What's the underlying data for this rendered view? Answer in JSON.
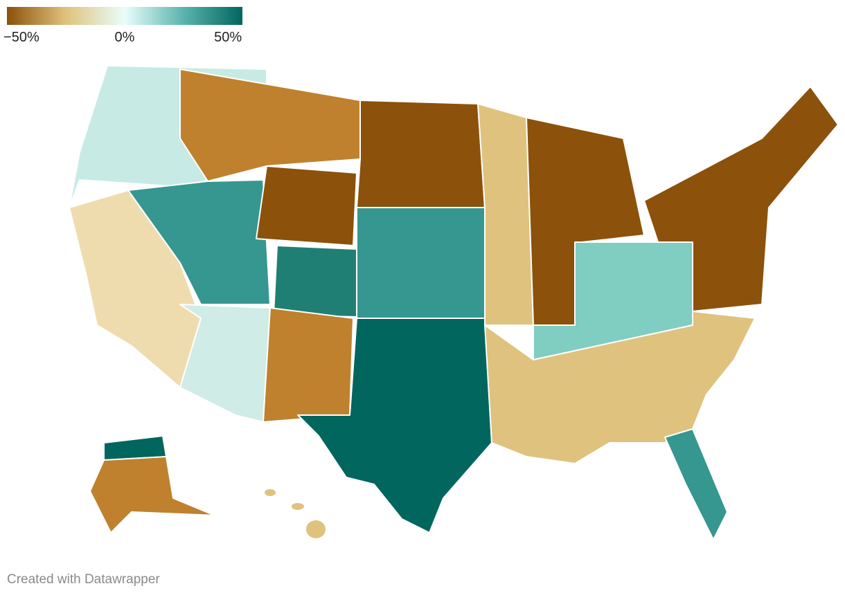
{
  "legend": {
    "colors": [
      "#8c510a",
      "#dfc27d",
      "#e8fdfb",
      "#5ab4ac",
      "#01665e"
    ],
    "range": [
      -57,
      57
    ],
    "ticks": [
      {
        "value": -50,
        "label": "−50%"
      },
      {
        "value": 0,
        "label": "0%"
      },
      {
        "value": 50,
        "label": "50%"
      }
    ]
  },
  "footer": "Created with Datawrapper"
}
